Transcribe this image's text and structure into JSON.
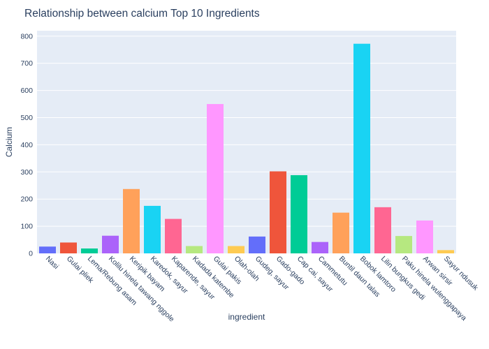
{
  "chart_data": {
    "type": "bar",
    "title": "Relationship between calcium Top 10 Ingredients",
    "xlabel": "ingredient",
    "ylabel": "Calcium",
    "ylim": [
      0,
      820
    ],
    "yticks": [
      0,
      100,
      200,
      300,
      400,
      500,
      600,
      700,
      800
    ],
    "grid": true,
    "legend": "none",
    "categories": [
      "Nasi",
      "Gulai pliek",
      "Lema/Rebung asam",
      "Kolilu hinela tawang nggole",
      "Keripik bayam",
      "Karedok, sayur",
      "Kaparende, sayur",
      "Kadada katembe",
      "Gulai pakis",
      "Olah-olah",
      "Gudeg, sayur",
      "Gado-gado",
      "Cap cai, sayur",
      "Cammetutu",
      "Buntil daun talas",
      "Bobok lamtoro",
      "Lilin bungkus gedi",
      "Paku hinela wulenggapaya",
      "Arwan sirsir",
      "Sayur ndusuk"
    ],
    "values": [
      25,
      40,
      18,
      65,
      237,
      175,
      127,
      27,
      550,
      27,
      62,
      302,
      288,
      42,
      150,
      772,
      170,
      64,
      121,
      12
    ],
    "colors": [
      "#636efa",
      "#ef553b",
      "#00cc96",
      "#ab63fa",
      "#ffa15a",
      "#19d3f3",
      "#ff6692",
      "#b6e880",
      "#ff97ff",
      "#fecb52",
      "#636efa",
      "#ef553b",
      "#00cc96",
      "#ab63fa",
      "#ffa15a",
      "#19d3f3",
      "#ff6692",
      "#b6e880",
      "#ff97ff",
      "#fecb52"
    ]
  }
}
